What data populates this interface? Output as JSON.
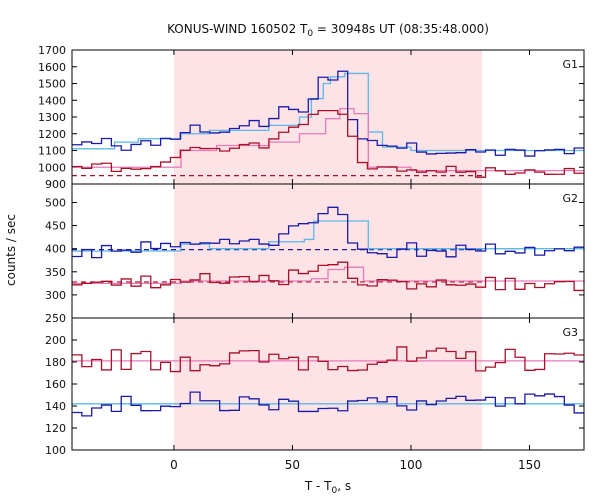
{
  "chart_data": {
    "type": "line",
    "title_main": "KONUS-WIND 160502 T",
    "title_sub": "0",
    "title_rest": " = 30948s UT (08:35:48.000)",
    "xlabel_main": "T - T",
    "xlabel_sub": "0",
    "xlabel_rest": ", s",
    "ylabel": "counts / sec",
    "xlim": [
      -43,
      173
    ],
    "xticks": [
      0,
      50,
      100,
      150
    ],
    "highlight_interval": [
      0,
      130
    ],
    "colors": {
      "blue": "#1a1aa8",
      "cyan": "#5cb8e6",
      "red": "#a8102a",
      "pink": "#e87ab8",
      "highlight": "#fde3e6"
    },
    "panels": [
      {
        "name": "G1",
        "ylim": [
          900,
          1700
        ],
        "yticks": [
          900,
          1000,
          1100,
          1200,
          1300,
          1400,
          1500,
          1600,
          1700
        ],
        "ylabel_ticks": [
          900,
          1000,
          1100,
          1200,
          1300,
          1400,
          1500,
          1600,
          1700
        ],
        "series": [
          {
            "color_key": "blue",
            "base": [
              1130,
              1160,
              1140,
              1150,
              1120,
              1100,
              1120,
              1140,
              1150,
              1150,
              1180,
              1220,
              1230,
              1230,
              1210,
              1230,
              1250,
              1240,
              1260,
              1230,
              1280,
              1380,
              1340,
              1330,
              1420,
              1520,
              1540,
              1560,
              1300,
              1190,
              1150,
              1120,
              1110,
              1100,
              1130,
              1080,
              1100,
              1090,
              1100,
              1080,
              1110,
              1100,
              1090,
              1080,
              1090,
              1100,
              1080,
              1100,
              1100,
              1110,
              1090,
              1100
            ],
            "noise": 22
          },
          {
            "color_key": "red",
            "base": [
              1000,
              1000,
              1010,
              1020,
              980,
              990,
              1000,
              1010,
              1000,
              1030,
              1060,
              1110,
              1120,
              1130,
              1100,
              1110,
              1130,
              1120,
              1140,
              1110,
              1150,
              1220,
              1240,
              1260,
              1310,
              1330,
              1350,
              1330,
              1180,
              1050,
              1000,
              990,
              990,
              980,
              990,
              970,
              990,
              980,
              990,
              980,
              970,
              960,
              980,
              970,
              960,
              980,
              970,
              980,
              970,
              960,
              980,
              970
            ],
            "noise": 22
          }
        ],
        "fits": [
          {
            "color_key": "cyan",
            "steps": [
              [
                -43,
                1110
              ],
              [
                -25,
                1150
              ],
              [
                -15,
                1170
              ],
              [
                3,
                1200
              ],
              [
                15,
                1220
              ],
              [
                40,
                1250
              ],
              [
                53,
                1300
              ],
              [
                58,
                1410
              ],
              [
                63,
                1500
              ],
              [
                66,
                1540
              ],
              [
                72,
                1560
              ],
              [
                82,
                1210
              ],
              [
                88,
                1120
              ],
              [
                100,
                1100
              ],
              [
                173,
                1100
              ]
            ]
          },
          {
            "color_key": "pink",
            "steps": [
              [
                -43,
                1000
              ],
              [
                3,
                1100
              ],
              [
                18,
                1130
              ],
              [
                40,
                1150
              ],
              [
                53,
                1200
              ],
              [
                64,
                1290
              ],
              [
                70,
                1350
              ],
              [
                76,
                1320
              ],
              [
                82,
                1000
              ],
              [
                100,
                980
              ],
              [
                173,
                980
              ]
            ]
          }
        ],
        "baselines": [
          {
            "color_key": "red",
            "y": 950,
            "x_end": 130
          }
        ]
      },
      {
        "name": "G2",
        "ylim": [
          250,
          540
        ],
        "yticks": [
          250,
          300,
          350,
          400,
          450,
          500
        ],
        "ylabel_ticks": [
          250,
          300,
          350,
          400,
          450,
          500
        ],
        "series": [
          {
            "color_key": "blue",
            "base": [
              395,
              400,
              390,
              395,
              400,
              395,
              390,
              405,
              395,
              400,
              410,
              420,
              410,
              415,
              405,
              420,
              400,
              410,
              420,
              400,
              410,
              430,
              440,
              455,
              460,
              470,
              480,
              465,
              420,
              405,
              395,
              400,
              390,
              395,
              405,
              390,
              395,
              400,
              390,
              405,
              395,
              385,
              400,
              395,
              390,
              400,
              395,
              390,
              400,
              395,
              405,
              395
            ],
            "noise": 12
          },
          {
            "color_key": "red",
            "base": [
              325,
              330,
              325,
              330,
              320,
              325,
              320,
              330,
              325,
              320,
              330,
              335,
              330,
              340,
              325,
              335,
              330,
              340,
              330,
              335,
              325,
              330,
              345,
              350,
              360,
              370,
              375,
              365,
              330,
              320,
              330,
              335,
              325,
              330,
              320,
              330,
              325,
              330,
              320,
              325,
              320,
              325,
              330,
              320,
              325,
              320,
              330,
              325,
              320,
              330,
              325,
              320
            ],
            "noise": 11
          }
        ],
        "fits": [
          {
            "color_key": "cyan",
            "steps": [
              [
                -43,
                395
              ],
              [
                3,
                410
              ],
              [
                15,
                400
              ],
              [
                40,
                415
              ],
              [
                55,
                420
              ],
              [
                59,
                460
              ],
              [
                82,
                400
              ],
              [
                173,
                395
              ]
            ]
          },
          {
            "color_key": "pink",
            "steps": [
              [
                -43,
                325
              ],
              [
                3,
                330
              ],
              [
                58,
                335
              ],
              [
                65,
                355
              ],
              [
                72,
                360
              ],
              [
                80,
                330
              ],
              [
                173,
                325
              ]
            ]
          }
        ],
        "baselines": [
          {
            "color_key": "blue",
            "y": 398,
            "x_end": 130
          },
          {
            "color_key": "red",
            "y": 328,
            "x_end": 130
          }
        ]
      },
      {
        "name": "G3",
        "ylim": [
          100,
          220
        ],
        "yticks": [
          100,
          120,
          140,
          160,
          180,
          200,
          220
        ],
        "ylabel_ticks": [
          100,
          120,
          140,
          160,
          180,
          200
        ],
        "series": [
          {
            "color_key": "blue",
            "base": [
              142,
              140,
              145,
              141,
              143,
              140,
              144,
              142,
              141,
              143,
              140,
              142,
              144,
              141,
              143,
              142,
              140,
              143,
              142,
              141,
              144,
              142,
              140,
              143,
              142,
              141,
              143,
              140,
              142,
              144,
              141,
              143,
              142,
              140,
              143,
              142,
              141,
              144,
              142,
              140,
              143,
              142,
              141,
              143,
              140,
              142,
              144,
              141,
              143,
              142,
              140,
              142
            ],
            "noise": 9
          },
          {
            "color_key": "red",
            "base": [
              182,
              185,
              180,
              183,
              181,
              184,
              180,
              182,
              183,
              181,
              180,
              184,
              182,
              181,
              183,
              180,
              182,
              184,
              181,
              183,
              180,
              182,
              184,
              181,
              183,
              180,
              182,
              181,
              183,
              180,
              182,
              184,
              181,
              183,
              180,
              182,
              181,
              183,
              180,
              182,
              184,
              181,
              183,
              180,
              182,
              181,
              183,
              180,
              182,
              181,
              183,
              180
            ],
            "noise": 11
          }
        ],
        "fits": [
          {
            "color_key": "cyan",
            "steps": [
              [
                -43,
                142
              ],
              [
                173,
                142
              ]
            ]
          },
          {
            "color_key": "pink",
            "steps": [
              [
                -43,
                181
              ],
              [
                173,
                181
              ]
            ]
          }
        ],
        "baselines": []
      }
    ]
  }
}
